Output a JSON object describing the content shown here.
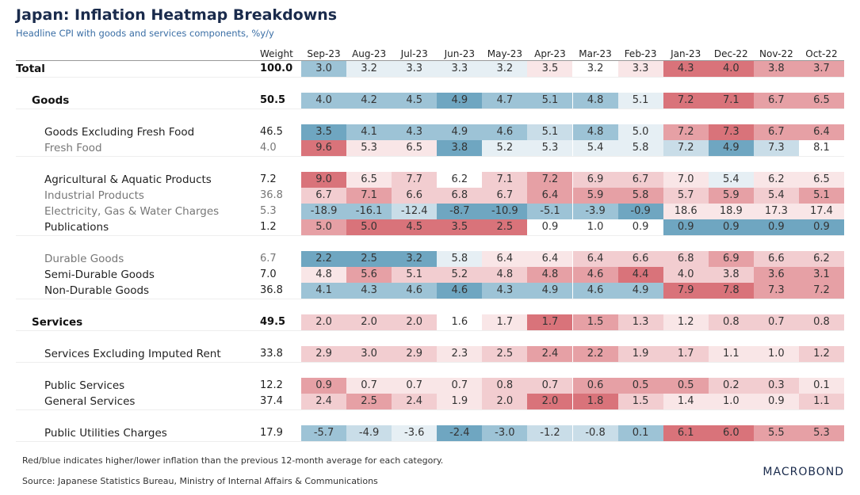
{
  "header": {
    "title": "Japan: Inflation Heatmap Breakdowns",
    "subtitle": "Headline CPI with goods and services components, %y/y"
  },
  "table": {
    "columns": [
      "Weight",
      "Sep-23",
      "Aug-23",
      "Jul-23",
      "Jun-23",
      "May-23",
      "Apr-23",
      "Mar-23",
      "Feb-23",
      "Jan-23",
      "Dec-22",
      "Nov-22",
      "Oct-22"
    ],
    "groups": [
      [
        {
          "label": "Total",
          "weight": "100.0",
          "values": [
            "3.0",
            "3.2",
            "3.3",
            "3.3",
            "3.2",
            "3.5",
            "3.2",
            "3.3",
            "4.3",
            "4.0",
            "3.8",
            "3.7"
          ],
          "colors": [
            "#9dc3d6",
            "#e6eff4",
            "#e6eff4",
            "#e6eff4",
            "#e6eff4",
            "#f9e6e7",
            "#ffffff",
            "#f9e6e7",
            "#d9737a",
            "#d9737a",
            "#e6a0a5",
            "#e6a0a5"
          ]
        }
      ],
      [
        {
          "label": "Goods",
          "weight": "50.5",
          "values": [
            "4.0",
            "4.2",
            "4.5",
            "4.9",
            "4.7",
            "5.1",
            "4.8",
            "5.1",
            "7.2",
            "7.1",
            "6.7",
            "6.5"
          ],
          "colors": [
            "#9dc3d6",
            "#9dc3d6",
            "#9dc3d6",
            "#6fa6c1",
            "#9dc3d6",
            "#9dc3d6",
            "#9dc3d6",
            "#e6eff4",
            "#d9737a",
            "#d9737a",
            "#e6a0a5",
            "#e6a0a5"
          ]
        }
      ],
      [
        {
          "label": "Goods Excluding Fresh Food",
          "weight": "46.5",
          "values": [
            "3.5",
            "4.1",
            "4.3",
            "4.9",
            "4.6",
            "5.1",
            "4.8",
            "5.0",
            "7.2",
            "7.3",
            "6.7",
            "6.4"
          ],
          "colors": [
            "#6fa6c1",
            "#9dc3d6",
            "#9dc3d6",
            "#9dc3d6",
            "#9dc3d6",
            "#c9dde8",
            "#9dc3d6",
            "#e6eff4",
            "#e6a0a5",
            "#d9737a",
            "#e6a0a5",
            "#e6a0a5"
          ]
        },
        {
          "label": "Fresh Food",
          "weight": "4.0",
          "values": [
            "9.6",
            "5.3",
            "6.5",
            "3.8",
            "5.2",
            "5.3",
            "5.4",
            "5.8",
            "7.2",
            "4.9",
            "7.3",
            "8.1"
          ],
          "colors": [
            "#d9737a",
            "#f9e6e7",
            "#f9e6e7",
            "#6fa6c1",
            "#e6eff4",
            "#e6eff4",
            "#e6eff4",
            "#e6eff4",
            "#c9dde8",
            "#6fa6c1",
            "#c9dde8",
            "#ffffff"
          ]
        }
      ],
      [
        {
          "label": "Agricultural & Aquatic Products",
          "weight": "7.2",
          "values": [
            "9.0",
            "6.5",
            "7.7",
            "6.2",
            "7.1",
            "7.2",
            "6.9",
            "6.7",
            "7.0",
            "5.4",
            "6.2",
            "6.5"
          ],
          "colors": [
            "#d9737a",
            "#f9e6e7",
            "#f2cdd0",
            "#ffffff",
            "#f2cdd0",
            "#e6a0a5",
            "#f2cdd0",
            "#f2cdd0",
            "#f9e6e7",
            "#e6eff4",
            "#f9e6e7",
            "#f9e6e7"
          ]
        },
        {
          "label": "Industrial Products",
          "weight": "36.8",
          "values": [
            "6.7",
            "7.1",
            "6.6",
            "6.8",
            "6.7",
            "6.4",
            "5.9",
            "5.8",
            "5.7",
            "5.9",
            "5.4",
            "5.1"
          ],
          "colors": [
            "#f2cdd0",
            "#e6a0a5",
            "#f2cdd0",
            "#f2cdd0",
            "#f2cdd0",
            "#e6a0a5",
            "#e6a0a5",
            "#e6a0a5",
            "#f2cdd0",
            "#e6a0a5",
            "#f2cdd0",
            "#e6a0a5"
          ]
        },
        {
          "label": "Electricity, Gas & Water Charges",
          "weight": "5.3",
          "values": [
            "-18.9",
            "-16.1",
            "-12.4",
            "-8.7",
            "-10.9",
            "-5.1",
            "-3.9",
            "-0.9",
            "18.6",
            "18.9",
            "17.3",
            "17.4"
          ],
          "colors": [
            "#9dc3d6",
            "#9dc3d6",
            "#c9dde8",
            "#6fa6c1",
            "#6fa6c1",
            "#9dc3d6",
            "#9dc3d6",
            "#6fa6c1",
            "#f9e6e7",
            "#f9e6e7",
            "#f9e6e7",
            "#f9e6e7"
          ]
        },
        {
          "label": "Publications",
          "weight": "1.2",
          "values": [
            "5.0",
            "5.0",
            "4.5",
            "3.5",
            "2.5",
            "0.9",
            "1.0",
            "0.9",
            "0.9",
            "0.9",
            "0.9",
            "0.9"
          ],
          "colors": [
            "#e6a0a5",
            "#d9737a",
            "#d9737a",
            "#d9737a",
            "#d9737a",
            "#ffffff",
            "#ffffff",
            "#ffffff",
            "#6fa6c1",
            "#6fa6c1",
            "#6fa6c1",
            "#6fa6c1"
          ]
        }
      ],
      [
        {
          "label": "Durable Goods",
          "weight": "6.7",
          "values": [
            "2.2",
            "2.5",
            "3.2",
            "5.8",
            "6.4",
            "6.4",
            "6.4",
            "6.6",
            "6.8",
            "6.9",
            "6.6",
            "6.2"
          ],
          "colors": [
            "#6fa6c1",
            "#6fa6c1",
            "#6fa6c1",
            "#e6eff4",
            "#f9e6e7",
            "#f9e6e7",
            "#f2cdd0",
            "#f2cdd0",
            "#f2cdd0",
            "#e6a0a5",
            "#f2cdd0",
            "#f2cdd0"
          ]
        },
        {
          "label": "Semi-Durable Goods",
          "weight": "7.0",
          "values": [
            "4.8",
            "5.6",
            "5.1",
            "5.2",
            "4.8",
            "4.8",
            "4.6",
            "4.4",
            "4.0",
            "3.8",
            "3.6",
            "3.1"
          ],
          "colors": [
            "#f9e6e7",
            "#e6a0a5",
            "#f2cdd0",
            "#f2cdd0",
            "#f2cdd0",
            "#e6a0a5",
            "#e6a0a5",
            "#d9737a",
            "#f2cdd0",
            "#f2cdd0",
            "#e6a0a5",
            "#e6a0a5"
          ]
        },
        {
          "label": "Non-Durable Goods",
          "weight": "36.8",
          "values": [
            "4.1",
            "4.3",
            "4.6",
            "4.6",
            "4.3",
            "4.9",
            "4.6",
            "4.9",
            "7.9",
            "7.8",
            "7.3",
            "7.2"
          ],
          "colors": [
            "#9dc3d6",
            "#9dc3d6",
            "#9dc3d6",
            "#6fa6c1",
            "#9dc3d6",
            "#9dc3d6",
            "#9dc3d6",
            "#9dc3d6",
            "#d9737a",
            "#d9737a",
            "#e6a0a5",
            "#e6a0a5"
          ]
        }
      ],
      [
        {
          "label": "Services",
          "weight": "49.5",
          "values": [
            "2.0",
            "2.0",
            "2.0",
            "1.6",
            "1.7",
            "1.7",
            "1.5",
            "1.3",
            "1.2",
            "0.8",
            "0.7",
            "0.8"
          ],
          "colors": [
            "#f2cdd0",
            "#f2cdd0",
            "#f2cdd0",
            "#ffffff",
            "#f9e6e7",
            "#d9737a",
            "#e6a0a5",
            "#f2cdd0",
            "#f9e6e7",
            "#f2cdd0",
            "#f2cdd0",
            "#f2cdd0"
          ]
        }
      ],
      [
        {
          "label": "Services Excluding Imputed Rent",
          "weight": "33.8",
          "values": [
            "2.9",
            "3.0",
            "2.9",
            "2.3",
            "2.5",
            "2.4",
            "2.2",
            "1.9",
            "1.7",
            "1.1",
            "1.0",
            "1.2"
          ],
          "colors": [
            "#f2cdd0",
            "#f2cdd0",
            "#f2cdd0",
            "#f9e6e7",
            "#f2cdd0",
            "#e6a0a5",
            "#e6a0a5",
            "#f2cdd0",
            "#f2cdd0",
            "#f9e6e7",
            "#f9e6e7",
            "#f2cdd0"
          ]
        }
      ],
      [
        {
          "label": "Public Services",
          "weight": "12.2",
          "values": [
            "0.9",
            "0.7",
            "0.7",
            "0.7",
            "0.8",
            "0.7",
            "0.6",
            "0.5",
            "0.5",
            "0.2",
            "0.3",
            "0.1"
          ],
          "colors": [
            "#e6a0a5",
            "#f9e6e7",
            "#f9e6e7",
            "#f9e6e7",
            "#f2cdd0",
            "#f2cdd0",
            "#e6a0a5",
            "#e6a0a5",
            "#e6a0a5",
            "#f2cdd0",
            "#f2cdd0",
            "#f9e6e7"
          ]
        },
        {
          "label": "General Services",
          "weight": "37.4",
          "values": [
            "2.4",
            "2.5",
            "2.4",
            "1.9",
            "2.0",
            "2.0",
            "1.8",
            "1.5",
            "1.4",
            "1.0",
            "0.9",
            "1.1"
          ],
          "colors": [
            "#f2cdd0",
            "#e6a0a5",
            "#f2cdd0",
            "#f9e6e7",
            "#f2cdd0",
            "#d9737a",
            "#d9737a",
            "#f2cdd0",
            "#f9e6e7",
            "#f9e6e7",
            "#f9e6e7",
            "#f2cdd0"
          ]
        }
      ],
      [
        {
          "label": "Public Utilities Charges",
          "weight": "17.9",
          "values": [
            "-5.7",
            "-4.9",
            "-3.6",
            "-2.4",
            "-3.0",
            "-1.2",
            "-0.8",
            "0.1",
            "6.1",
            "6.0",
            "5.5",
            "5.3"
          ],
          "colors": [
            "#9dc3d6",
            "#c9dde8",
            "#e6eff4",
            "#6fa6c1",
            "#9dc3d6",
            "#c9dde8",
            "#c9dde8",
            "#9dc3d6",
            "#d9737a",
            "#d9737a",
            "#e6a0a5",
            "#e6a0a5"
          ]
        }
      ]
    ]
  },
  "footer": {
    "note": "Red/blue indicates higher/lower inflation than the previous 12-month average for each category.",
    "source": "Source: Japanese Statistics Bureau, Ministry of Internal Affairs & Communications",
    "logo": "MACROBOND"
  }
}
